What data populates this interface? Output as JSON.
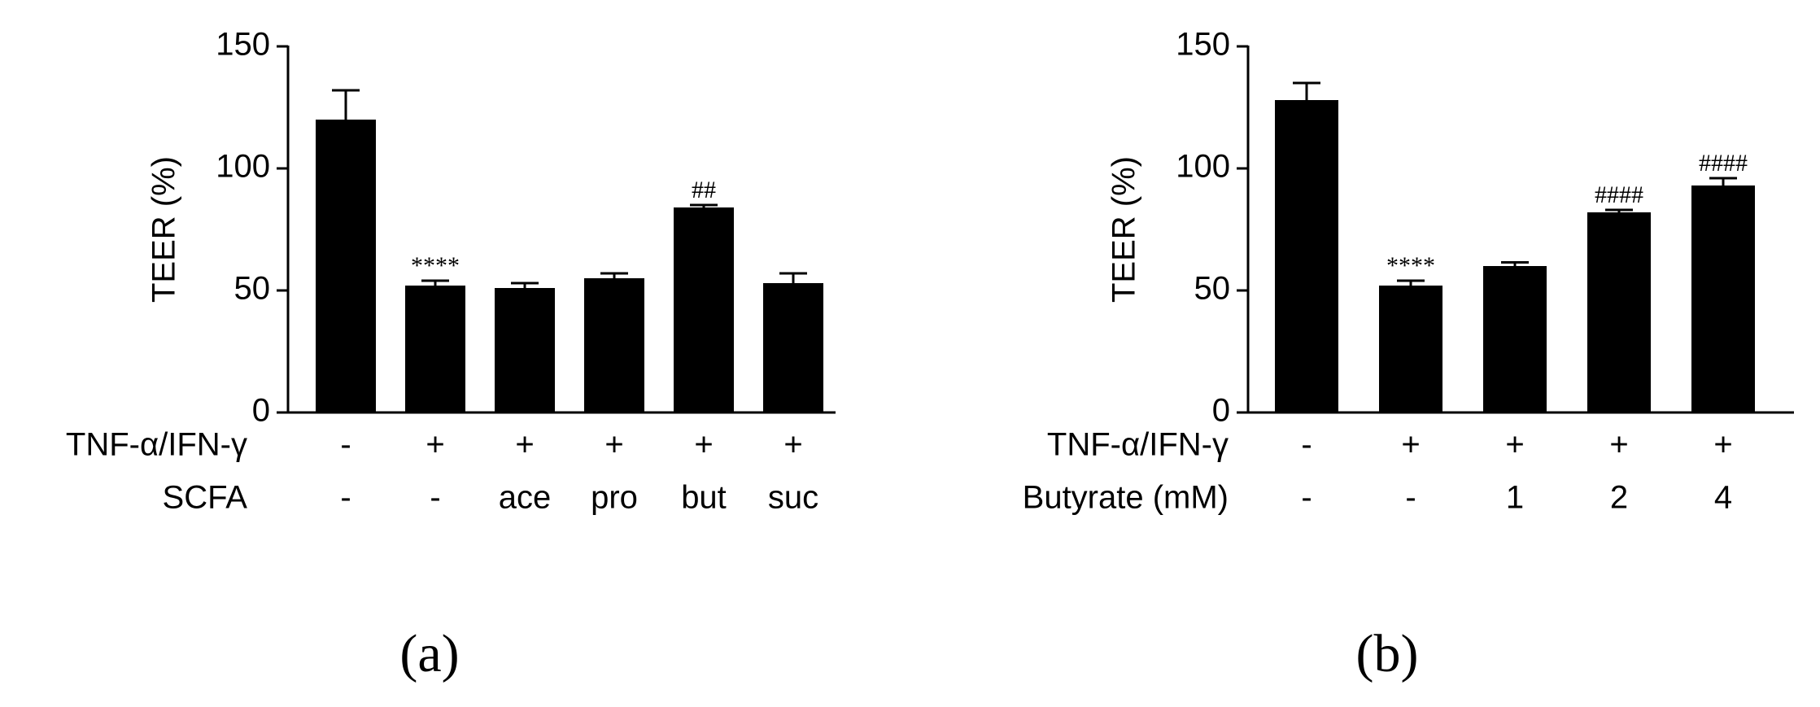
{
  "chart_data": [
    {
      "type": "bar",
      "panel_label": "(a)",
      "y_label": "TEER (%)",
      "color": "#000000",
      "values": [
        120,
        52,
        51,
        55,
        84,
        53
      ],
      "errors": [
        12,
        2,
        2,
        2,
        1,
        4
      ],
      "bar_labels": [
        null,
        "****",
        null,
        null,
        "##",
        null
      ],
      "rows": [
        {
          "label": "TNF-α/IFN-γ",
          "values": [
            "-",
            "+",
            "+",
            "+",
            "+",
            "+"
          ]
        },
        {
          "label": "SCFA",
          "values": [
            "-",
            "-",
            "ace",
            "pro",
            "but",
            "suc"
          ]
        }
      ],
      "ylim": [
        0,
        150
      ],
      "yticks": [
        0,
        50,
        100,
        150
      ]
    },
    {
      "type": "bar",
      "panel_label": "(b)",
      "y_label": "TEER (%)",
      "color": "#000000",
      "values": [
        128,
        52,
        60,
        82,
        93
      ],
      "errors": [
        7,
        2,
        1.5,
        1,
        3
      ],
      "bar_labels": [
        null,
        "****",
        null,
        "####",
        "####"
      ],
      "rows": [
        {
          "label": "TNF-α/IFN-γ",
          "values": [
            "-",
            "+",
            "+",
            "+",
            "+"
          ]
        },
        {
          "label": "Butyrate (mM)",
          "values": [
            "-",
            "-",
            "1",
            "2",
            "4"
          ]
        }
      ],
      "ylim": [
        0,
        150
      ],
      "yticks": [
        0,
        50,
        100,
        150
      ]
    }
  ]
}
